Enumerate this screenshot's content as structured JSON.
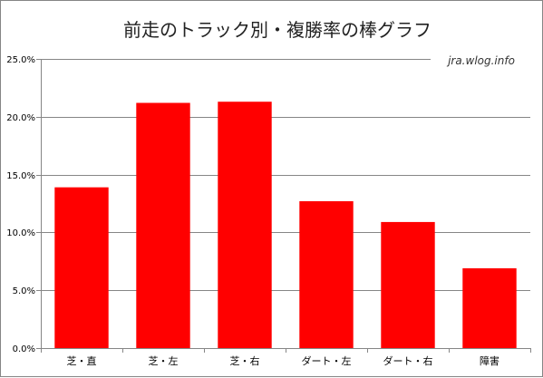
{
  "chart_data": {
    "type": "bar",
    "title": "前走のトラック別・複勝率の棒グラフ",
    "watermark": "jra.wlog.info",
    "categories": [
      "芝・直",
      "芝・左",
      "芝・右",
      "ダート・左",
      "ダート・右",
      "障害"
    ],
    "values": [
      0.139,
      0.212,
      0.213,
      0.127,
      0.109,
      0.069
    ],
    "yticks": [
      "0.0%",
      "5.0%",
      "10.0%",
      "15.0%",
      "20.0%",
      "25.0%"
    ],
    "ylim": [
      0,
      0.25
    ],
    "xlabel": "",
    "ylabel": "",
    "grid": true,
    "bar_color": "#ff0000",
    "grid_color": "#868686"
  }
}
